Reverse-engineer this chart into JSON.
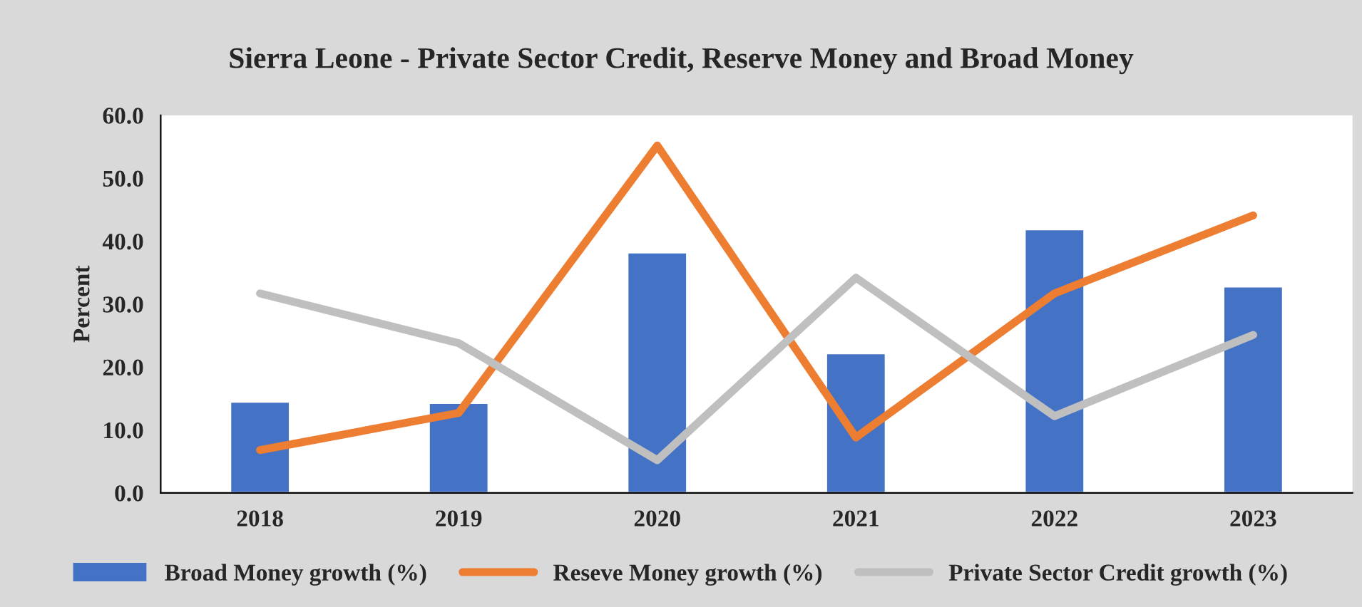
{
  "chart_data": {
    "type": "bar",
    "title": "Sierra Leone - Private Sector Credit, Reserve Money and Broad Money",
    "ylabel": "Percent",
    "categories": [
      "2018",
      "2019",
      "2020",
      "2021",
      "2022",
      "2023"
    ],
    "series": [
      {
        "name": "Broad Money growth (%)",
        "color": "#4472c4",
        "values": [
          14.5,
          14.3,
          38.2,
          22.2,
          41.9,
          32.8
        ]
      },
      {
        "name": "Reseve Money growth (%)",
        "type": "line",
        "color": "#ed7d31",
        "values": [
          6.8,
          12.7,
          55.2,
          8.8,
          31.7,
          44.1
        ]
      },
      {
        "name": "Private Sector Credit growth (%)",
        "type": "line",
        "color": "#bfbfbf",
        "values": [
          31.7,
          23.8,
          5.2,
          34.2,
          12.2,
          25.1
        ]
      }
    ],
    "ylim": [
      0,
      60
    ],
    "yticks": [
      {
        "value": 0,
        "label": "0.0"
      },
      {
        "value": 10,
        "label": "10.0"
      },
      {
        "value": 20,
        "label": "20.0"
      },
      {
        "value": 30,
        "label": "30.0"
      },
      {
        "value": 40,
        "label": "40.0"
      },
      {
        "value": 50,
        "label": "50.0"
      },
      {
        "value": 60,
        "label": "60.0"
      }
    ],
    "grid": false,
    "legend": "bottom"
  }
}
